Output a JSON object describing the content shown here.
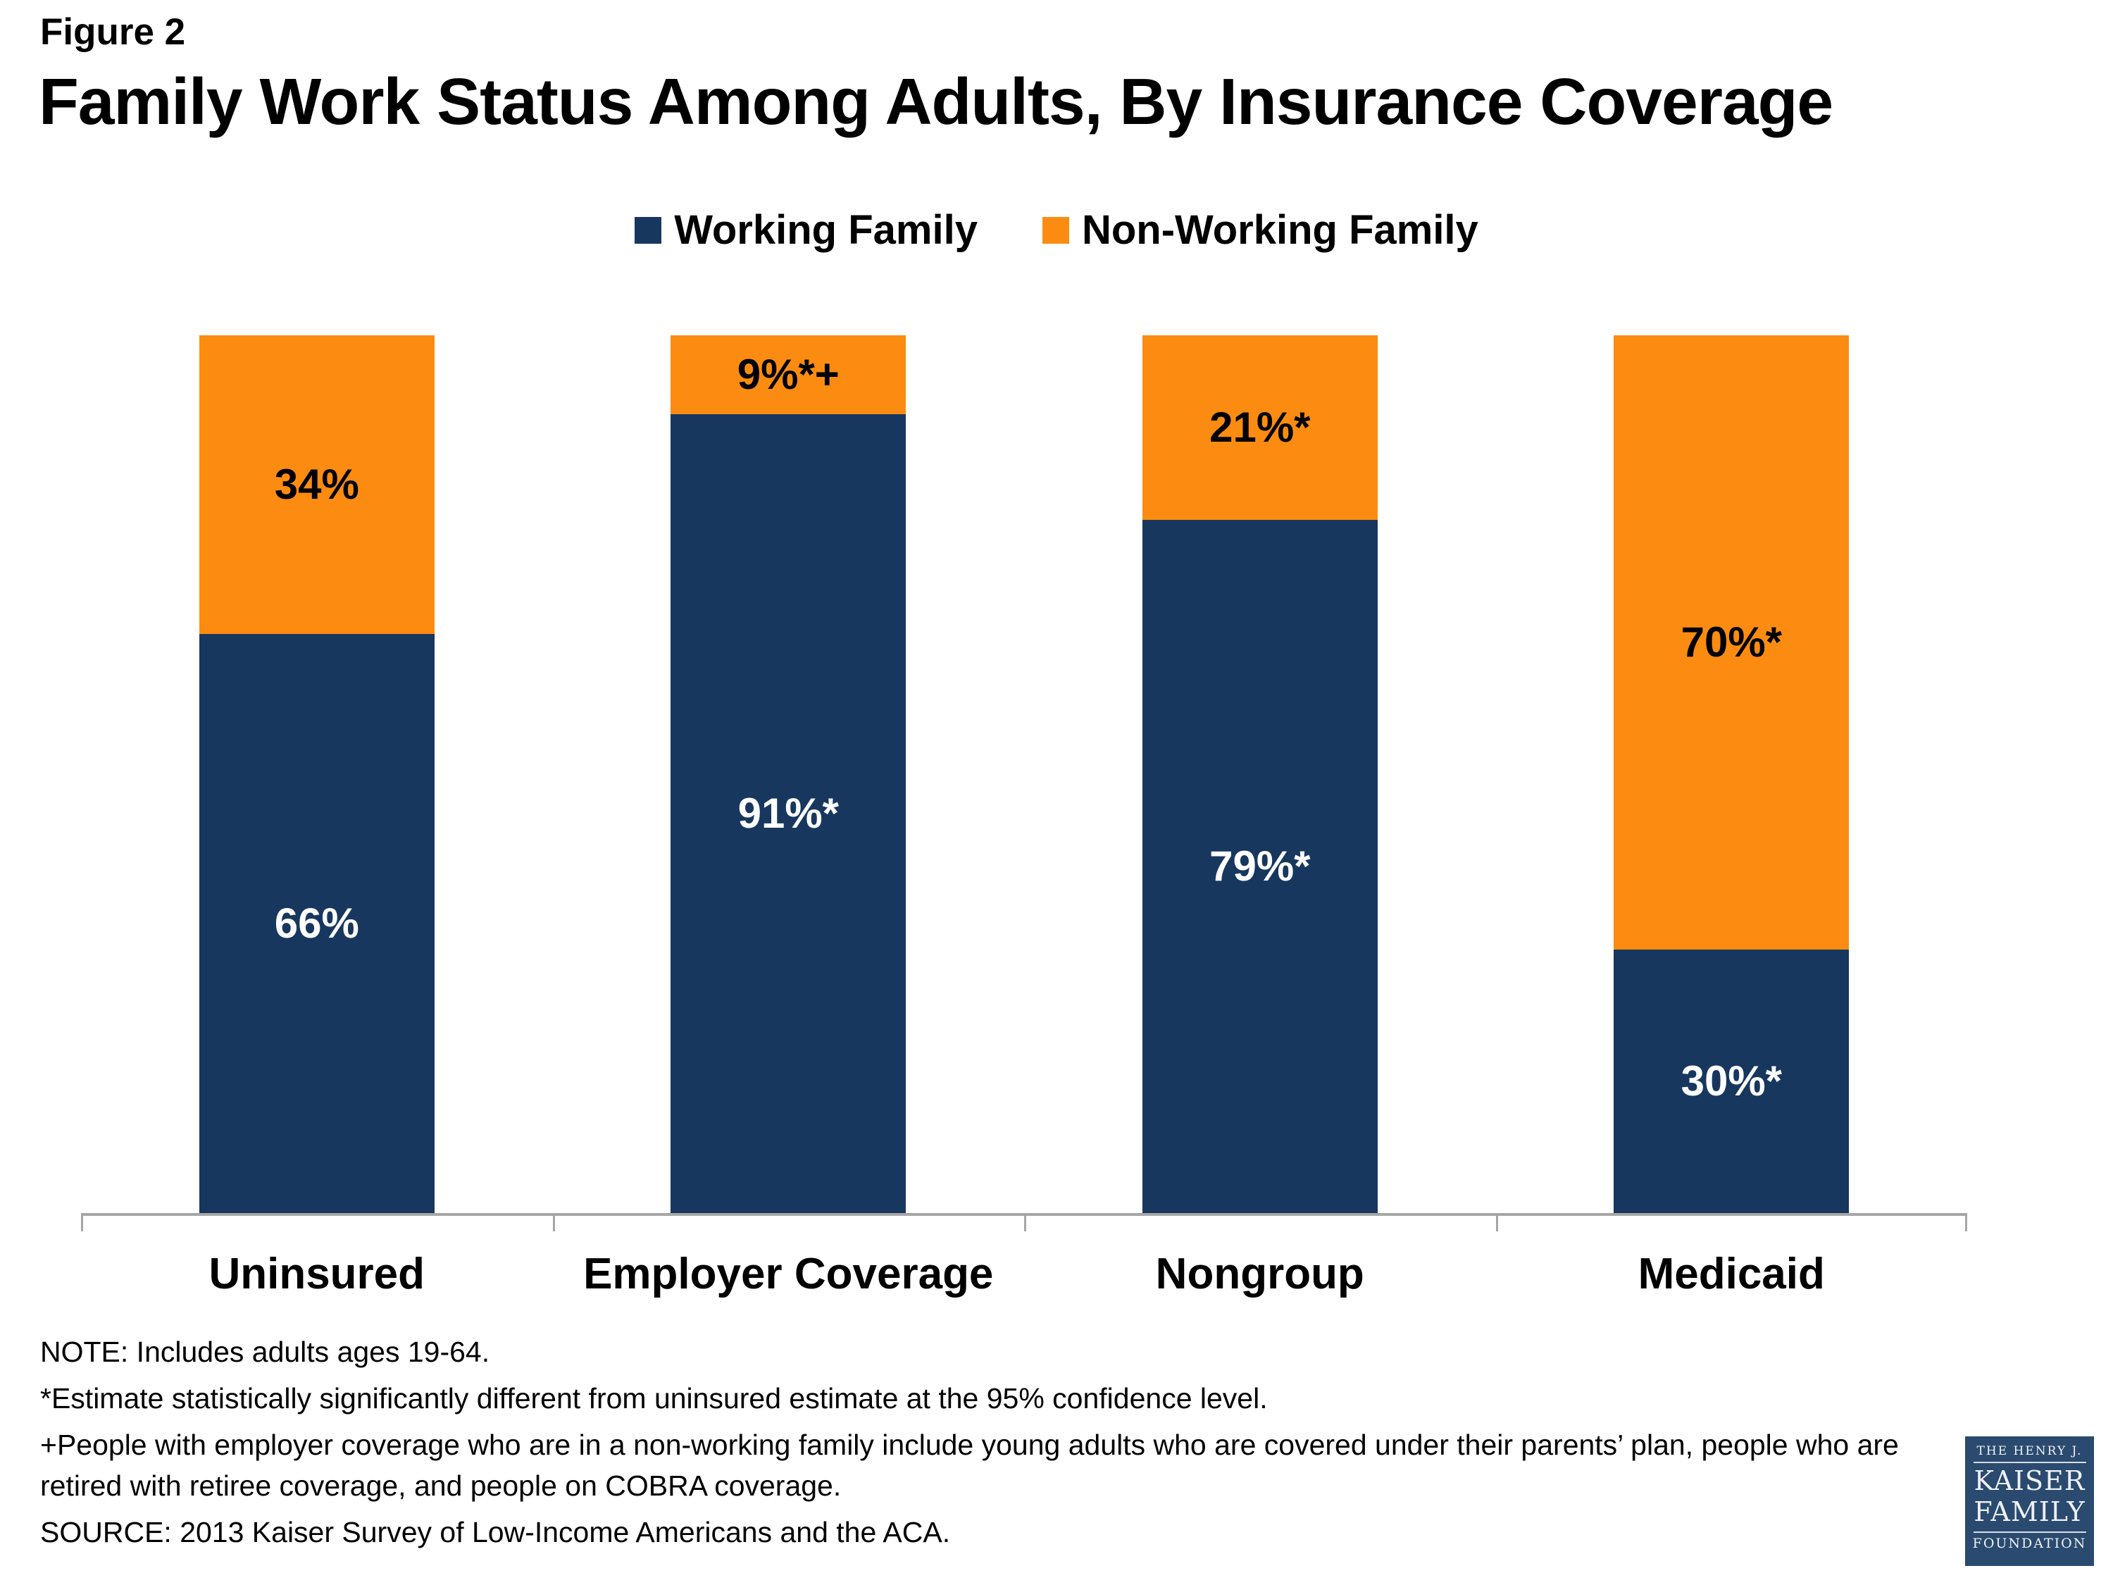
{
  "figure_label": "Figure 2",
  "title": "Family Work Status Among Adults, By Insurance Coverage",
  "legend": [
    {
      "label": "Working Family",
      "color": "#17375E"
    },
    {
      "label": "Non-Working Family",
      "color": "#FB8C11"
    }
  ],
  "chart_data": {
    "type": "bar",
    "stacked": true,
    "orientation": "vertical",
    "title": "Family Work Status Among Adults, By Insurance Coverage",
    "categories": [
      "Uninsured",
      "Employer Coverage",
      "Nongroup",
      "Medicaid"
    ],
    "series": [
      {
        "name": "Working Family",
        "color": "#17375E",
        "values": [
          66,
          91,
          79,
          30
        ],
        "labels": [
          "66%",
          "91%*",
          "79%*",
          "30%*"
        ],
        "label_color": "#FFFFFF"
      },
      {
        "name": "Non-Working Family",
        "color": "#FB8C11",
        "values": [
          34,
          9,
          21,
          70
        ],
        "labels": [
          "34%",
          "9%*+",
          "21%*",
          "70%*"
        ],
        "label_color": "#000000"
      }
    ],
    "ylim": [
      0,
      100
    ],
    "grid": false,
    "legend_position": "top",
    "unit": "percent"
  },
  "colors": {
    "axis": "#A6A6A6",
    "background": "#FFFFFF"
  },
  "notes": [
    "NOTE: Includes adults ages 19-64.",
    "*Estimate statistically significantly different from uninsured estimate  at the 95% confidence level.",
    "+People with employer coverage who are in a non-working family include young adults who are covered under their parents’ plan, people who are retired with retiree coverage, and people on COBRA coverage.",
    "SOURCE: 2013 Kaiser Survey of Low-Income Americans and the ACA."
  ],
  "logo": {
    "line1": "THE HENRY J.",
    "line2": "KAISER",
    "line3": "FAMILY",
    "line4": "FOUNDATION",
    "bg_color": "#2B4A6F"
  }
}
